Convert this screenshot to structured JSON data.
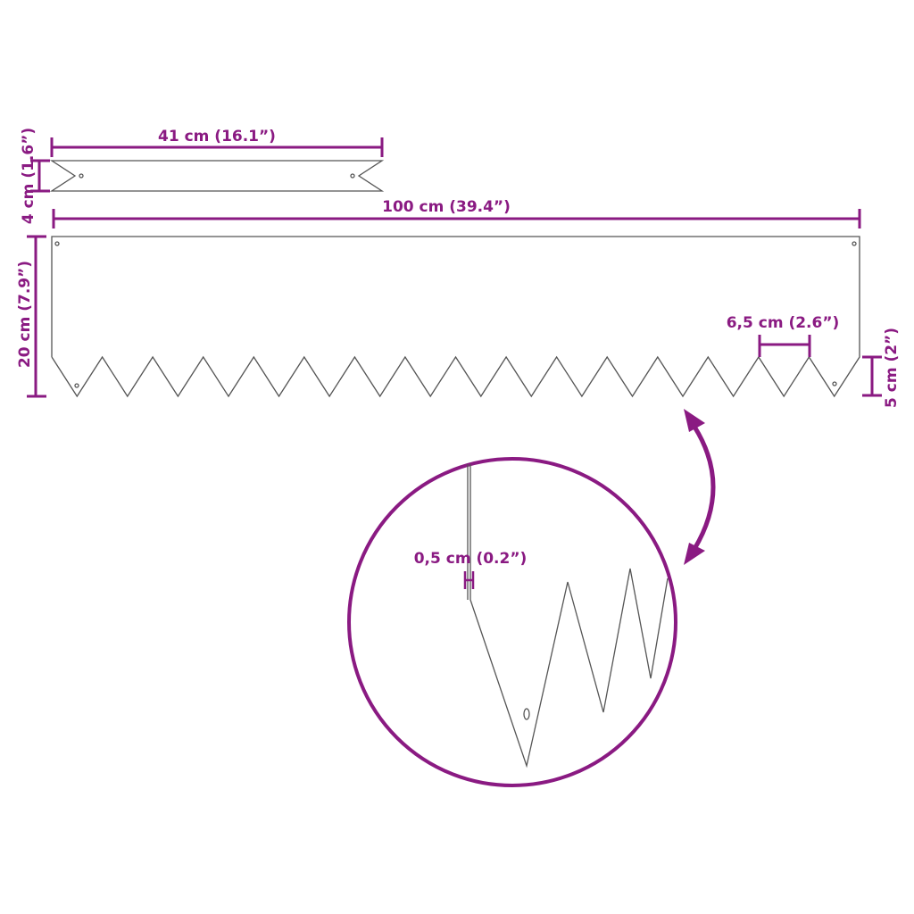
{
  "colors": {
    "dimension": "#8a1a82",
    "outline": "#555555"
  },
  "dimensions": {
    "stake_length": "41 cm (16.1”)",
    "stake_width": "4 cm (1.6”)",
    "panel_length": "100 cm (39.4”)",
    "panel_height": "20 cm (7.9”)",
    "tooth_pitch": "6,5 cm (2.6”)",
    "tooth_depth": "5 cm (2”)",
    "thickness": "0,5 cm (0.2”)"
  }
}
